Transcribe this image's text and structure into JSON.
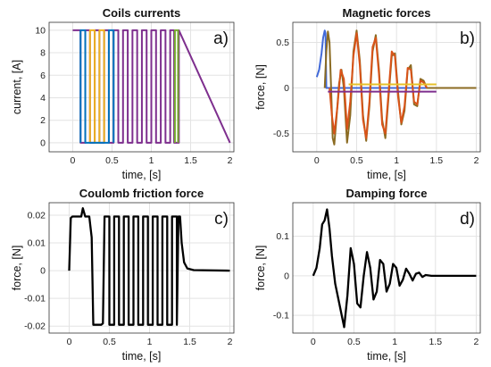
{
  "figure": {
    "panels": [
      {
        "id": "a",
        "label": "a)",
        "chart_data": {
          "type": "line",
          "title": "Coils currents",
          "xlabel": "time, [s]",
          "ylabel": "current, [A]",
          "xlim": [
            -0.3,
            2.05
          ],
          "ylim": [
            -0.8,
            10.7
          ],
          "xticks": [
            0,
            0.5,
            1,
            1.5,
            2
          ],
          "xticklabels": [
            "0",
            "0.5",
            "1",
            "1.5",
            "2"
          ],
          "yticks": [
            0,
            2,
            4,
            6,
            8,
            10
          ],
          "yticklabels": [
            "0",
            "2",
            "4",
            "6",
            "8",
            "10"
          ],
          "grid": true,
          "series": [
            {
              "color": "#7e2f8e",
              "x": [
                0,
                0.02,
                0.02,
                0.1,
                0.1,
                0.16,
                0.16,
                0.22,
                0.22,
                0.28,
                0.28,
                0.34,
                0.34,
                0.4,
                0.4,
                0.46,
                0.46,
                0.52,
                0.52,
                0.58,
                0.58,
                0.64,
                0.64,
                0.7,
                0.7,
                0.76,
                0.76,
                0.82,
                0.82,
                0.88,
                0.88,
                0.94,
                0.94,
                1.0,
                1.0,
                1.06,
                1.06,
                1.12,
                1.12,
                1.18,
                1.18,
                1.24,
                1.24,
                1.29,
                1.29,
                1.35,
                1.35,
                2.0
              ],
              "y": [
                10,
                10,
                10,
                10,
                0,
                0,
                10,
                10,
                0,
                0,
                10,
                10,
                0,
                0,
                10,
                10,
                0,
                0,
                10,
                10,
                0,
                0,
                10,
                10,
                0,
                0,
                10,
                10,
                0,
                0,
                10,
                10,
                0,
                0,
                10,
                10,
                0,
                0,
                10,
                10,
                0,
                0,
                10,
                10,
                0,
                0,
                10,
                0
              ]
            },
            {
              "color": "#edb120",
              "x": [
                0.22,
                0.22,
                0.28,
                0.28,
                0.34,
                0.34,
                0.4,
                0.4
              ],
              "y": [
                0,
                10,
                10,
                0,
                0,
                10,
                10,
                0
              ]
            },
            {
              "color": "#0072bd",
              "x": [
                0.1,
                0.1,
                0.16,
                0.16,
                0.46,
                0.46,
                0.52,
                0.52
              ],
              "y": [
                0,
                10,
                10,
                0,
                0,
                10,
                10,
                0
              ]
            },
            {
              "color": "#77ac30",
              "x": [
                1.3,
                1.3,
                1.34,
                1.34
              ],
              "y": [
                0,
                10,
                10,
                0
              ]
            }
          ]
        }
      },
      {
        "id": "b",
        "label": "b)",
        "chart_data": {
          "type": "line",
          "title": "Magnetic forces",
          "xlabel": "time, [s]",
          "ylabel": "force, [N]",
          "xlim": [
            -0.3,
            2.05
          ],
          "ylim": [
            -0.7,
            0.72
          ],
          "xticks": [
            0,
            0.5,
            1,
            1.5,
            2
          ],
          "xticklabels": [
            "0",
            "0.5",
            "1",
            "1.5",
            "2"
          ],
          "yticks": [
            -0.5,
            0,
            0.5
          ],
          "yticklabels": [
            "-0.5",
            "0",
            "0.5"
          ],
          "grid": true,
          "series": [
            {
              "color": "#4169d8",
              "x": [
                0,
                0.03,
                0.06,
                0.08,
                0.1,
                0.11,
                0.12,
                0.14,
                2.0
              ],
              "y": [
                0.12,
                0.2,
                0.38,
                0.55,
                0.63,
                0.6,
                0,
                0,
                0
              ]
            },
            {
              "color": "#8b6b22",
              "x": [
                0.1,
                0.12,
                0.14,
                0.16,
                0.18,
                0.2,
                0.22,
                0.25,
                0.28,
                0.31,
                0.34,
                0.38,
                0.42,
                0.46,
                0.5,
                0.54,
                0.58,
                0.62,
                0.66,
                0.7,
                0.74,
                0.78,
                0.82,
                0.86,
                0.9,
                0.94,
                0.98,
                1.02,
                1.06,
                1.1,
                1.14,
                1.18,
                1.22,
                1.26,
                1.3,
                1.34,
                1.38,
                2.0
              ],
              "y": [
                0,
                0.4,
                0.62,
                0.5,
                0,
                -0.55,
                -0.62,
                -0.3,
                0.05,
                0.2,
                0,
                -0.6,
                -0.3,
                0.4,
                0.63,
                0.3,
                -0.3,
                -0.58,
                -0.2,
                0.4,
                0.58,
                0.2,
                -0.35,
                -0.55,
                -0.1,
                0.35,
                0.38,
                -0.05,
                -0.4,
                -0.25,
                0.2,
                0.25,
                -0.18,
                -0.2,
                0.1,
                0.08,
                0,
                0
              ]
            },
            {
              "color": "#d95319",
              "x": [
                0.16,
                0.19,
                0.22,
                0.26,
                0.3,
                0.34,
                0.38,
                0.42,
                0.46,
                0.5,
                0.54,
                0.58,
                0.62,
                0.66,
                0.7,
                0.74,
                0.78,
                0.82,
                0.86,
                0.9,
                0.94,
                0.98,
                1.02,
                1.06,
                1.1,
                1.14,
                1.18,
                1.22,
                1.26,
                1.3,
                1.34,
                1.38
              ],
              "y": [
                0,
                -0.3,
                -0.5,
                -0.2,
                0.2,
                0.1,
                -0.45,
                -0.15,
                0.35,
                0.6,
                0.25,
                -0.35,
                -0.55,
                -0.15,
                0.45,
                0.55,
                0.15,
                -0.4,
                -0.5,
                -0.05,
                0.4,
                0.35,
                -0.1,
                -0.38,
                -0.2,
                0.22,
                0.2,
                -0.15,
                -0.18,
                0.08,
                0.06,
                0
              ]
            },
            {
              "color": "#e6c02a",
              "x": [
                0.4,
                0.7,
                0.72,
                1.5
              ],
              "y": [
                0.04,
                0.04,
                0.04,
                0.04
              ]
            },
            {
              "color": "#7e2f8e",
              "x": [
                0.14,
                1.5
              ],
              "y": [
                -0.04,
                -0.04
              ]
            }
          ]
        }
      },
      {
        "id": "c",
        "label": "c)",
        "chart_data": {
          "type": "line",
          "title": "Coulomb friction force",
          "xlabel": "time, [s]",
          "ylabel": "force, [N]",
          "xlim": [
            -0.25,
            2.05
          ],
          "ylim": [
            -0.0225,
            0.0245
          ],
          "xticks": [
            0,
            0.5,
            1,
            1.5,
            2
          ],
          "xticklabels": [
            "0",
            "0.5",
            "1",
            "1.5",
            "2"
          ],
          "yticks": [
            -0.02,
            -0.01,
            0,
            0.01,
            0.02
          ],
          "yticklabels": [
            "-0.02",
            "-0.01",
            "0",
            "0.01",
            "0.02"
          ],
          "grid": true,
          "series": [
            {
              "color": "#000000",
              "x": [
                0,
                0.02,
                0.04,
                0.15,
                0.17,
                0.2,
                0.25,
                0.28,
                0.3,
                0.4,
                0.42,
                0.44,
                0.5,
                0.5,
                0.56,
                0.56,
                0.62,
                0.62,
                0.68,
                0.68,
                0.74,
                0.74,
                0.8,
                0.8,
                0.86,
                0.86,
                0.92,
                0.92,
                0.98,
                0.98,
                1.04,
                1.04,
                1.1,
                1.1,
                1.16,
                1.16,
                1.22,
                1.22,
                1.28,
                1.28,
                1.34,
                1.34,
                1.36,
                1.38,
                1.4,
                1.43,
                1.47,
                1.55,
                2.0
              ],
              "y": [
                0,
                0.019,
                0.0195,
                0.0195,
                0.0225,
                0.0195,
                0.0195,
                0.012,
                -0.0195,
                -0.0195,
                -0.019,
                0.0195,
                0.0195,
                -0.0195,
                -0.0195,
                0.0195,
                0.0195,
                -0.0195,
                -0.0195,
                0.0195,
                0.0195,
                -0.0195,
                -0.0195,
                0.0195,
                0.0195,
                -0.0195,
                -0.0195,
                0.0195,
                0.0195,
                -0.0195,
                -0.0195,
                0.0195,
                0.0195,
                -0.0195,
                -0.0195,
                0.0195,
                0.0195,
                -0.0195,
                -0.0195,
                0.0195,
                0.0195,
                -0.0195,
                0.0195,
                0.0195,
                0.01,
                0.003,
                0.0008,
                0.0002,
                0
              ]
            }
          ]
        }
      },
      {
        "id": "d",
        "label": "d)",
        "chart_data": {
          "type": "line",
          "title": "Damping force",
          "xlabel": "time, [s]",
          "ylabel": "force, [N]",
          "xlim": [
            -0.25,
            2.05
          ],
          "ylim": [
            -0.145,
            0.185
          ],
          "xticks": [
            0,
            0.5,
            1,
            1.5,
            2
          ],
          "xticklabels": [
            "0",
            "0.5",
            "1",
            "1.5",
            "2"
          ],
          "yticks": [
            -0.1,
            0,
            0.1
          ],
          "yticklabels": [
            "-0.1",
            "0",
            "0.1"
          ],
          "grid": true,
          "series": [
            {
              "color": "#000000",
              "x": [
                0,
                0.04,
                0.08,
                0.11,
                0.14,
                0.17,
                0.2,
                0.23,
                0.27,
                0.31,
                0.35,
                0.38,
                0.42,
                0.46,
                0.5,
                0.54,
                0.58,
                0.62,
                0.66,
                0.7,
                0.74,
                0.78,
                0.82,
                0.86,
                0.9,
                0.94,
                0.98,
                1.02,
                1.06,
                1.1,
                1.14,
                1.18,
                1.22,
                1.26,
                1.3,
                1.34,
                1.38,
                1.45,
                2.0
              ],
              "y": [
                0,
                0.02,
                0.07,
                0.13,
                0.14,
                0.168,
                0.12,
                0.05,
                -0.02,
                -0.06,
                -0.1,
                -0.13,
                -0.05,
                0.07,
                0.03,
                -0.07,
                -0.08,
                0.0,
                0.06,
                0.02,
                -0.06,
                -0.04,
                0.04,
                0.03,
                -0.04,
                -0.02,
                0.03,
                0.02,
                -0.025,
                -0.01,
                0.018,
                0.005,
                -0.012,
                0.005,
                0.008,
                -0.003,
                0.002,
                0,
                0
              ]
            }
          ]
        }
      }
    ]
  }
}
